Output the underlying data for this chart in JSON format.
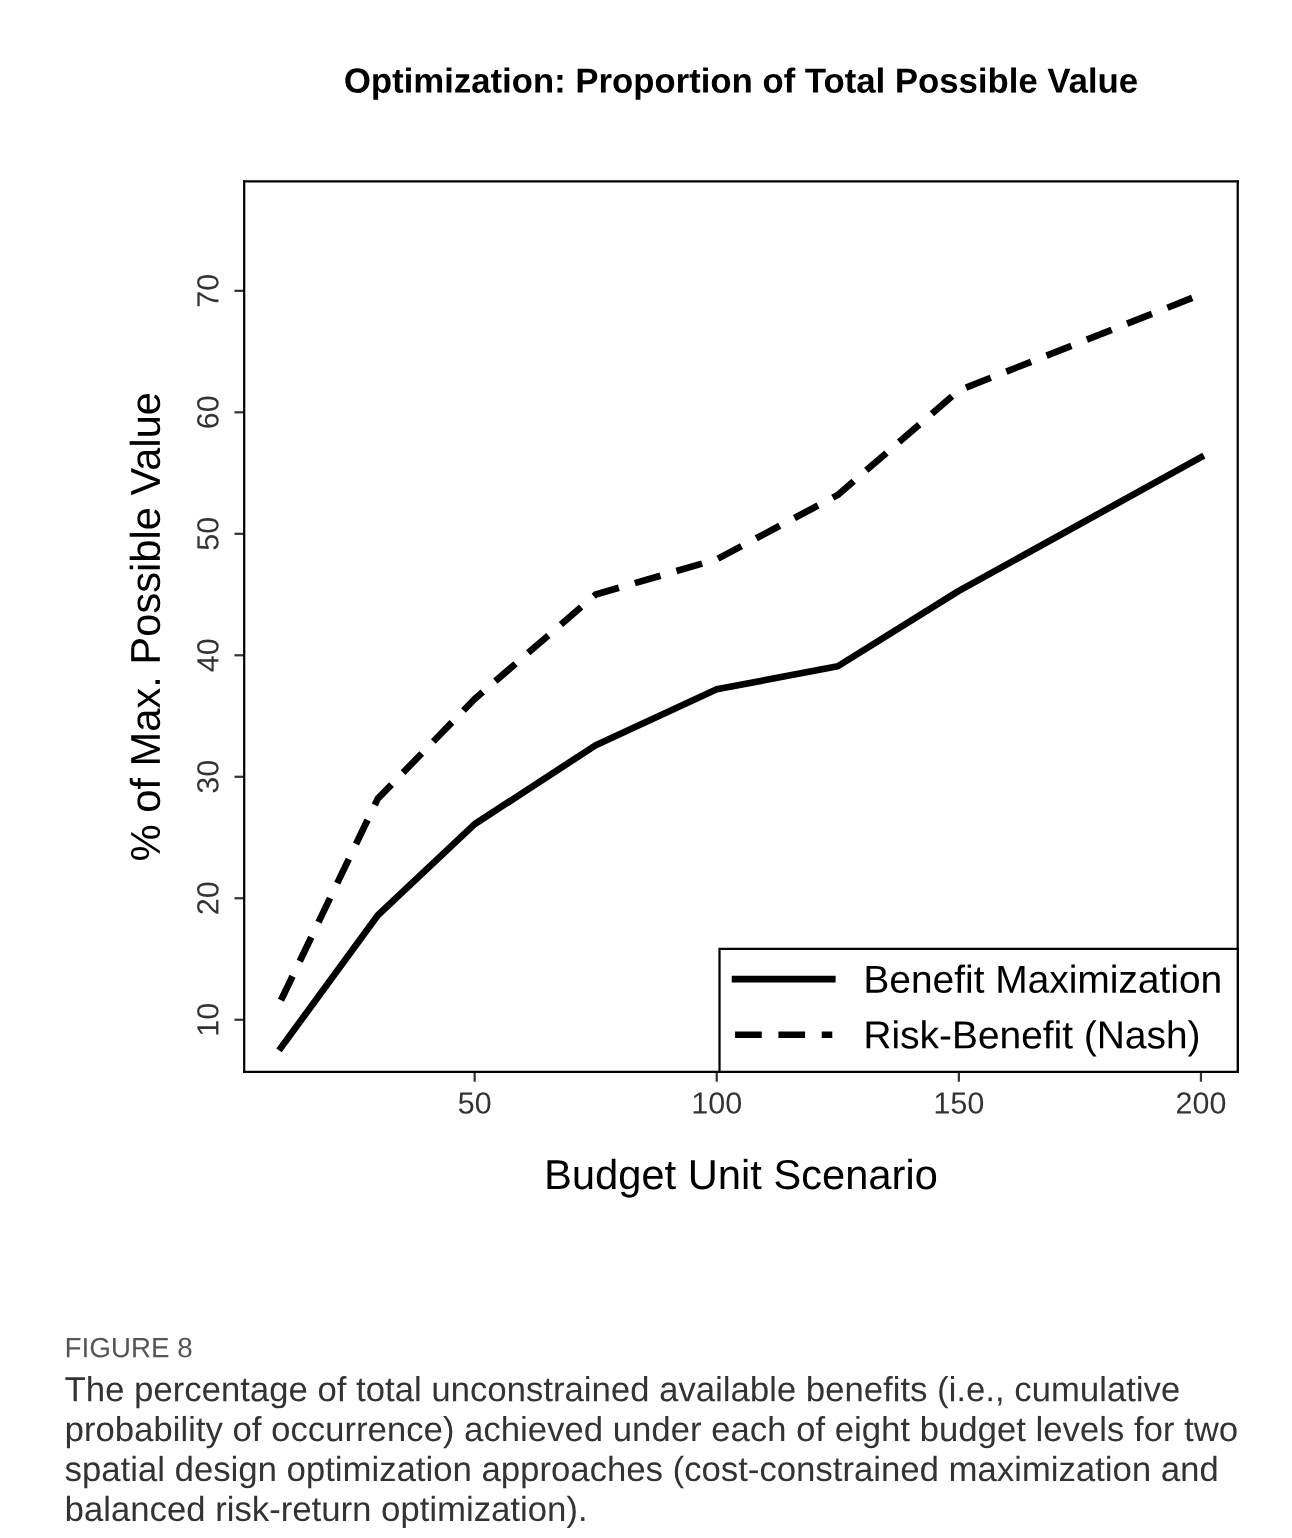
{
  "chart_data": {
    "type": "line",
    "title": "Optimization: Proportion of Total Possible Value",
    "xlabel": "Budget Unit Scenario",
    "ylabel": "% of Max. Possible Value",
    "x": [
      10,
      30,
      50,
      75,
      100,
      125,
      150,
      200
    ],
    "series": [
      {
        "name": "Benefit Maximization",
        "color": "#000000",
        "line_style": "solid",
        "values": [
          7.7,
          18.6,
          26.1,
          32.6,
          37.2,
          39.1,
          45.3,
          56.3
        ]
      },
      {
        "name": "Risk-Benefit (Nash)",
        "color": "#000000",
        "line_style": "dashed",
        "values": [
          11.6,
          28.2,
          36.4,
          45.0,
          47.9,
          53.2,
          61.8,
          69.7
        ]
      }
    ],
    "xlim": [
      2.4,
      207.6
    ],
    "ylim": [
      5.7,
      79
    ],
    "xticks": [
      50,
      100,
      150,
      200
    ],
    "yticks": [
      10,
      20,
      30,
      40,
      50,
      60,
      70
    ],
    "grid": false,
    "legend": "bottom right",
    "marker": "none",
    "annotations": [
      "FIGURE 8",
      "The percentage of total unconstrained available benefits (i.e., cumulative probability of occurrence) achieved under each of eight budget levels for two spatial design optimization approaches (cost-constrained maximization and balanced risk-return optimization)."
    ]
  }
}
